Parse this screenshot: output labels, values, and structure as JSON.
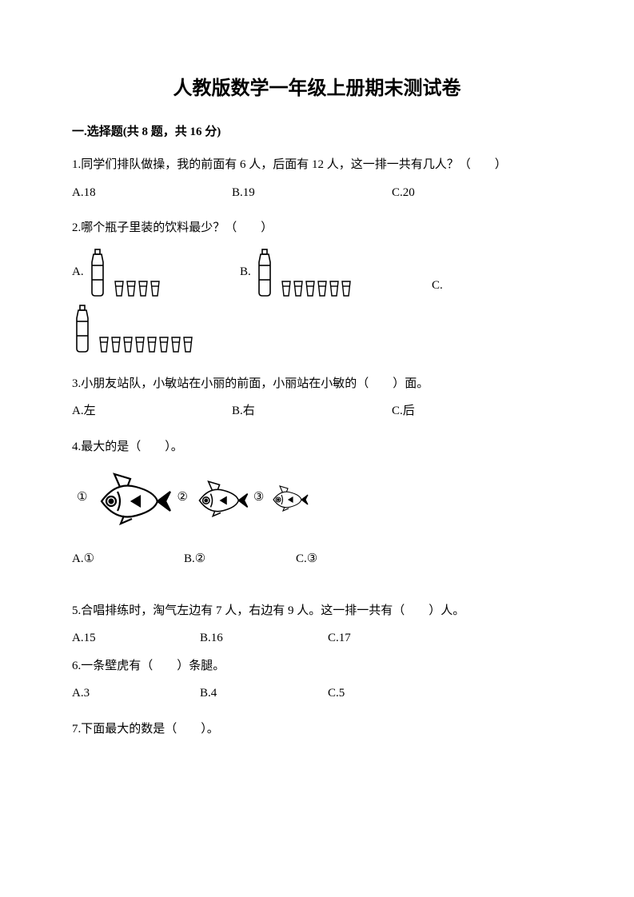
{
  "title": "人教版数学一年级上册期末测试卷",
  "section": "一.选择题(共 8 题，共 16 分)",
  "q1": {
    "text": "1.同学们排队做操，我的前面有 6 人，后面有 12 人，这一排一共有几人？（　　）",
    "a": "A.18",
    "b": "B.19",
    "c": "C.20"
  },
  "q2": {
    "text": "2.哪个瓶子里装的饮料最少？（　　）",
    "a": "A.",
    "b": "B.",
    "c": "C.",
    "cups_a": 4,
    "cups_b": 6,
    "cups_c": 8
  },
  "q3": {
    "text": "3.小朋友站队，小敏站在小丽的前面，小丽站在小敏的（　　）面。",
    "a": "A.左",
    "b": "B.右",
    "c": "C.后"
  },
  "q4": {
    "text": "4.最大的是（　　）。",
    "l1": "①",
    "l2": "②",
    "l3": "③",
    "a": "A.①",
    "b": "B.②",
    "c": "C.③"
  },
  "q5": {
    "text": "5.合唱排练时，淘气左边有 7 人，右边有 9 人。这一排一共有（　　）人。",
    "a": "A.15",
    "b": "B.16",
    "c": "C.17"
  },
  "q6": {
    "text": "6.一条壁虎有（　　）条腿。",
    "a": "A.3",
    "b": "B.4",
    "c": "C.5"
  },
  "q7": {
    "text": "7.下面最大的数是（　　）。"
  },
  "style": {
    "text_color": "#000000",
    "bg_color": "#ffffff",
    "title_fontsize": 24,
    "body_fontsize": 15,
    "line_height": 1.9,
    "bottle_stroke": "#000000",
    "fish_stroke": "#000000",
    "fish_sizes": [
      1.0,
      0.7,
      0.5
    ]
  }
}
